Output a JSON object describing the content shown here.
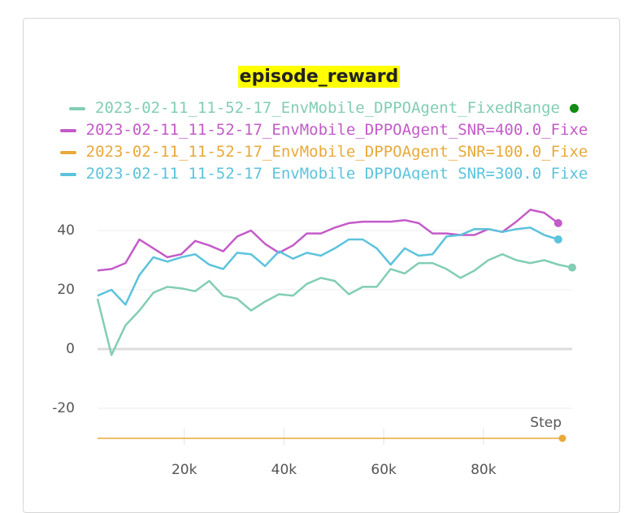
{
  "chart_data": {
    "type": "line",
    "title": "episode_reward",
    "x_label": "Step",
    "x": [
      2600,
      5400,
      8200,
      11000,
      13800,
      16600,
      19400,
      22200,
      25000,
      27800,
      30600,
      33400,
      36200,
      39000,
      41800,
      44600,
      47400,
      50200,
      53000,
      55800,
      58600,
      61400,
      64200,
      67000,
      69800,
      72600,
      75400,
      78200,
      81000,
      83800,
      86600,
      89400,
      92200,
      95000,
      97800
    ],
    "xlim": [
      2600,
      97800
    ],
    "xticks": [
      {
        "value": 20000,
        "label": "20k"
      },
      {
        "value": 40000,
        "label": "40k"
      },
      {
        "value": 60000,
        "label": "60k"
      },
      {
        "value": 80000,
        "label": "80k"
      }
    ],
    "ylim": [
      -22,
      50
    ],
    "yticks": [
      -20,
      0,
      20,
      40
    ],
    "grid": true,
    "series": [
      {
        "name": "2023-02-11_11-52-17_EnvMobile_DPPOAgent_FixedRange",
        "color": "#82cdb5",
        "values": [
          17,
          -2,
          8,
          13,
          19,
          21,
          20.5,
          19.5,
          23,
          18,
          17,
          13,
          16,
          18.5,
          18,
          22,
          24,
          23,
          18.5,
          21,
          21,
          27,
          25.5,
          29,
          29,
          27,
          24,
          26.5,
          30,
          32,
          30,
          29,
          30,
          28.5,
          27.5
        ]
      },
      {
        "name": "2023-02-11_11-52-17_EnvMobile_DPPOAgent_SNR=400.0_Fixe",
        "color": "#c35bc8",
        "values": [
          26.5,
          27,
          29,
          37,
          34,
          31,
          32,
          36.5,
          35,
          33,
          38,
          40,
          35.5,
          32.5,
          35,
          39,
          39,
          41,
          42.5,
          43,
          43,
          43,
          43.5,
          42.5,
          39,
          39,
          38.5,
          38.5,
          40.5,
          39.5,
          43,
          47,
          46,
          42.5,
          null
        ]
      },
      {
        "name": "2023-02-11_11-52-17_EnvMobile_DPPOAgent_SNR=100.0_Fixe",
        "color": "#e8a93a"
      },
      {
        "name": "2023-02-11_11-52-17_EnvMobile_DPPOAgent_SNR=300.0_Fixe",
        "color": "#5cc3dc",
        "values": [
          18,
          20,
          15,
          25,
          31,
          29.5,
          31,
          32,
          28.5,
          27,
          32.5,
          32,
          28,
          33,
          30.5,
          32.5,
          31.5,
          34,
          37,
          37,
          34,
          28.5,
          34,
          31.5,
          32,
          38,
          38.5,
          40.5,
          40.5,
          39.5,
          40.5,
          41,
          38.5,
          37,
          null
        ]
      }
    ]
  }
}
